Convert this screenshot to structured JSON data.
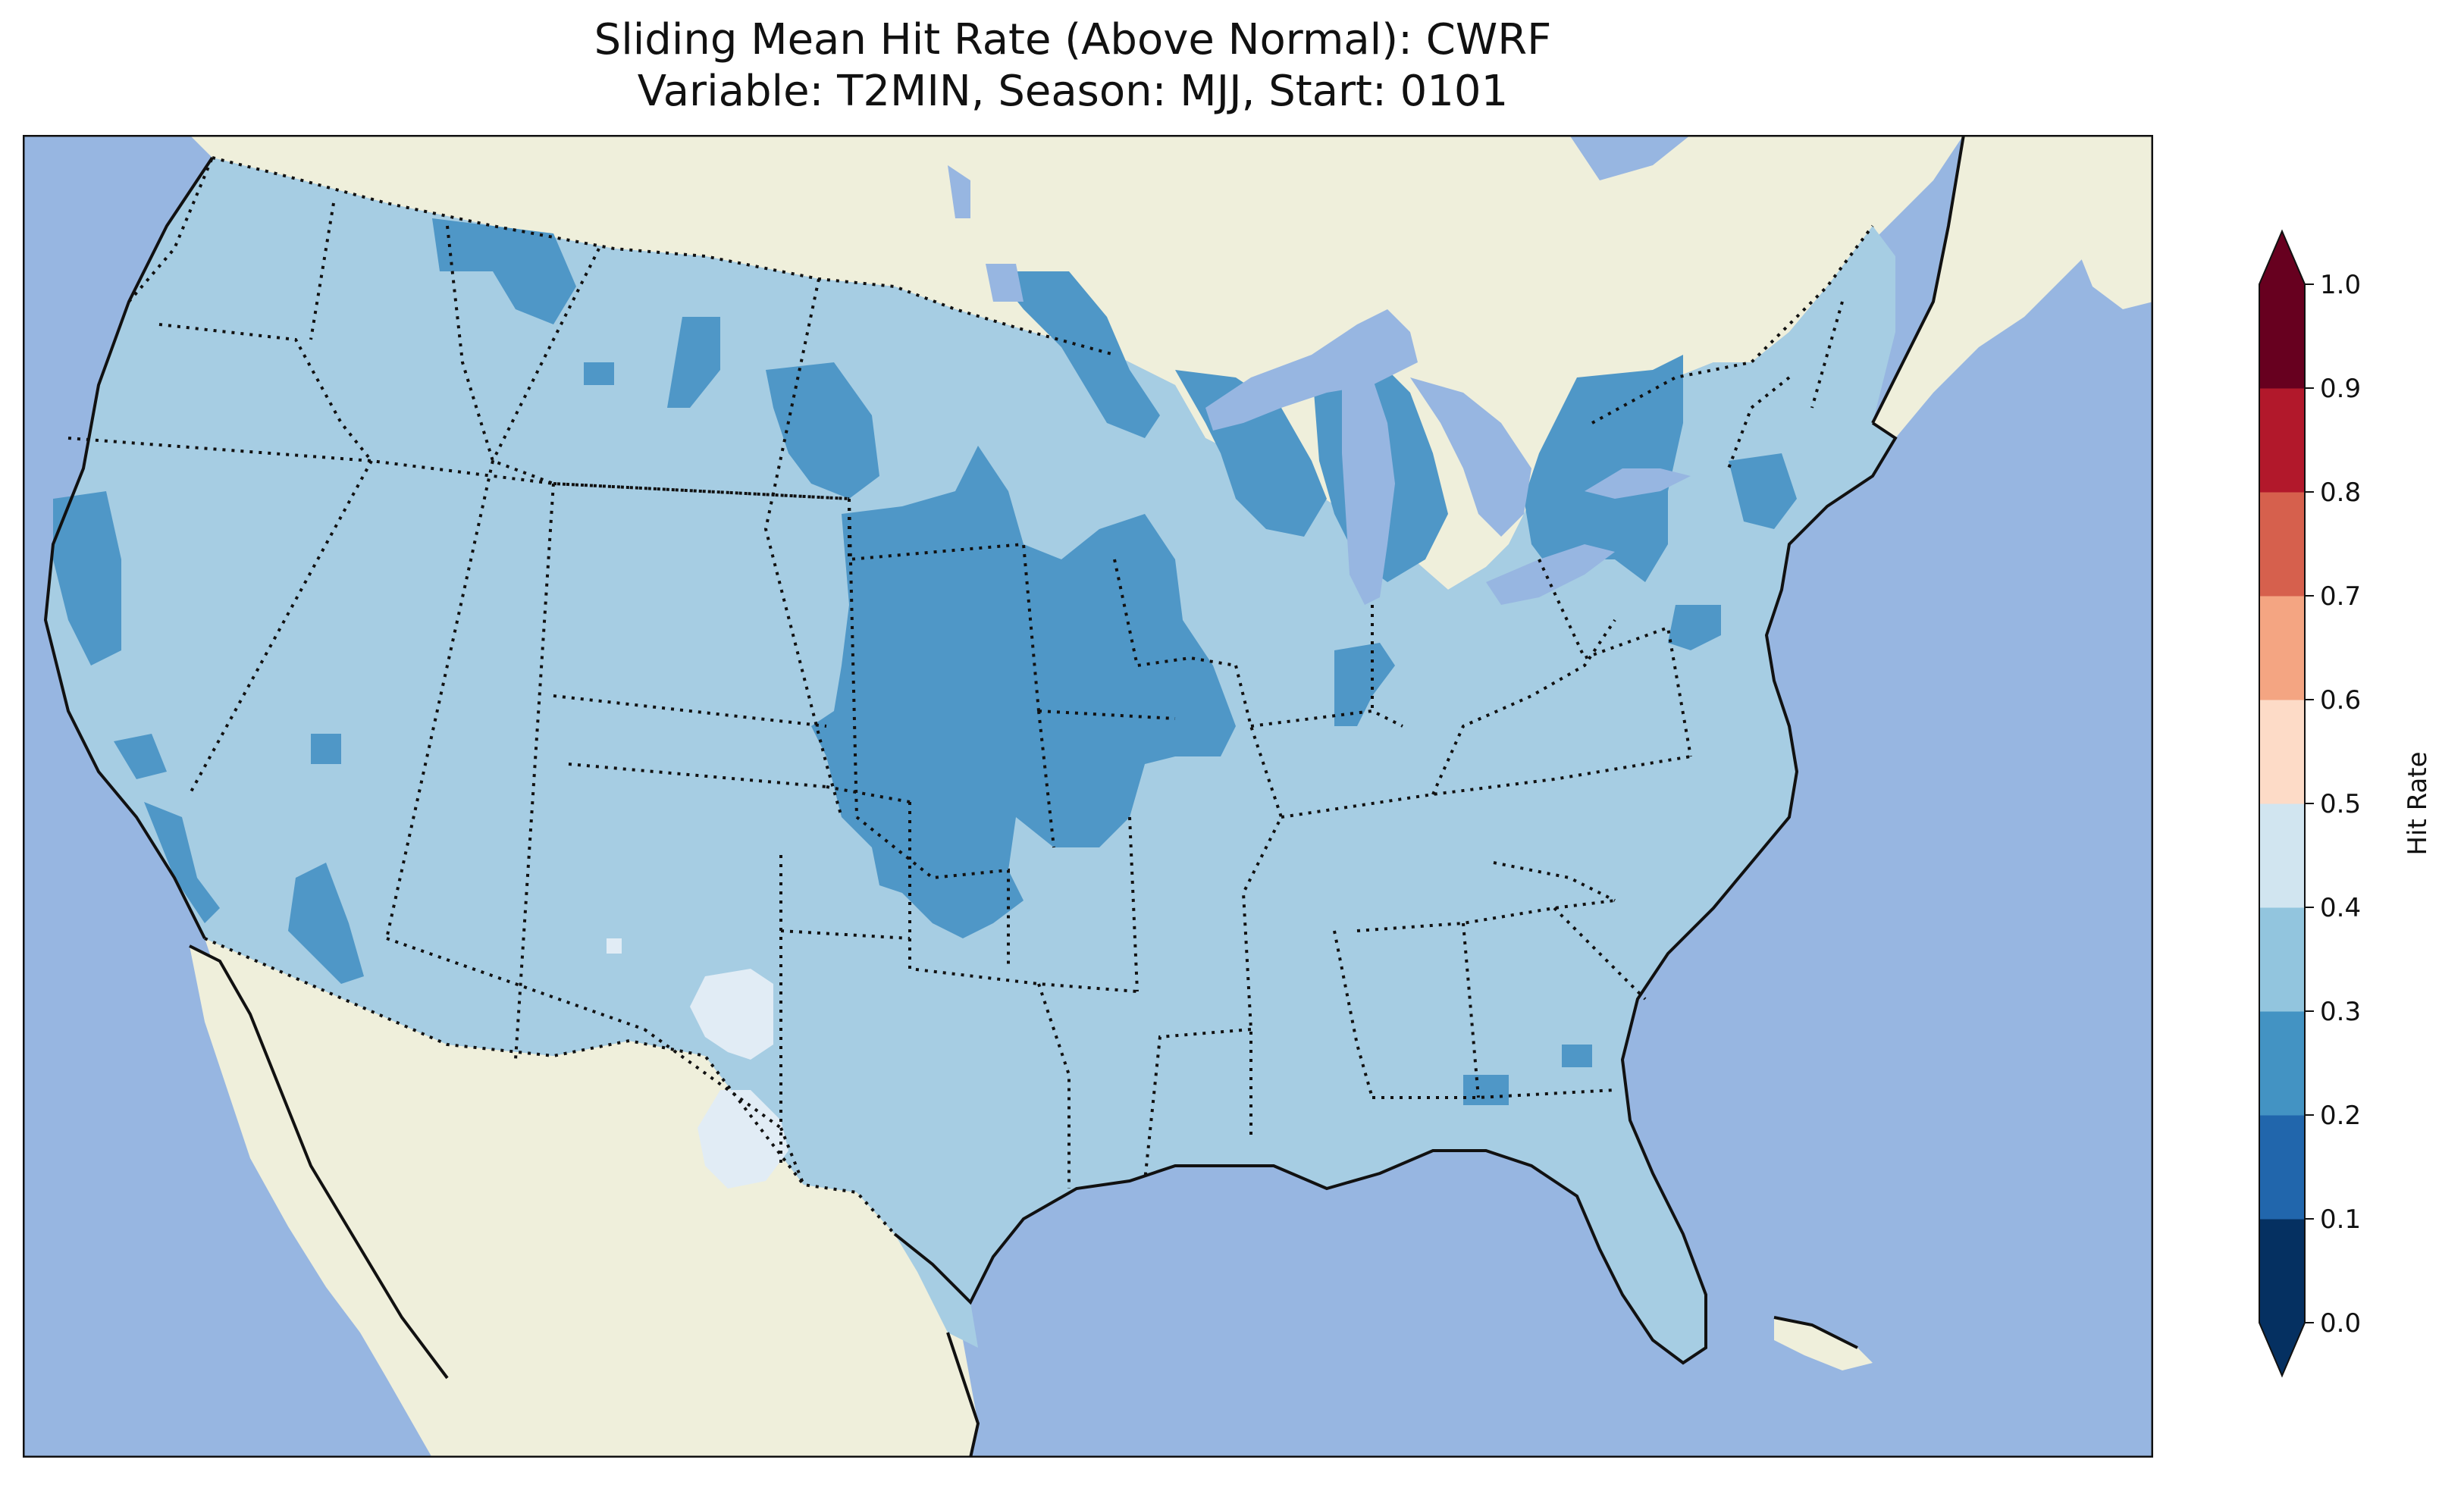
{
  "title_line1": "Sliding Mean Hit Rate (Above Normal): CWRF",
  "title_line2": "Variable: T2MIN, Season: MJJ, Start: 0101",
  "colors": {
    "ocean": "#97b6e1",
    "land": "#efefdb",
    "lakes": "#97b6e1"
  },
  "colorbar": {
    "label": "Hit Rate",
    "ticks": [
      "0.0",
      "0.1",
      "0.2",
      "0.3",
      "0.4",
      "0.5",
      "0.6",
      "0.7",
      "0.8",
      "0.9",
      "1.0"
    ],
    "levels": [
      {
        "from": 0.0,
        "to": 0.1,
        "color": "#053061"
      },
      {
        "from": 0.1,
        "to": 0.2,
        "color": "#2166ac"
      },
      {
        "from": 0.2,
        "to": 0.3,
        "color": "#4393c3"
      },
      {
        "from": 0.3,
        "to": 0.4,
        "color": "#92c5de"
      },
      {
        "from": 0.4,
        "to": 0.5,
        "color": "#d1e5f0"
      },
      {
        "from": 0.5,
        "to": 0.6,
        "color": "#fddbc7"
      },
      {
        "from": 0.6,
        "to": 0.7,
        "color": "#f4a582"
      },
      {
        "from": 0.7,
        "to": 0.8,
        "color": "#d6604d"
      },
      {
        "from": 0.8,
        "to": 0.9,
        "color": "#b2182b"
      },
      {
        "from": 0.9,
        "to": 1.0,
        "color": "#67001f"
      }
    ],
    "under_color": "#053061",
    "over_color": "#67001f"
  },
  "map_fill": {
    "base_level": "0.3-0.4",
    "base_color": "#a6cde3",
    "low_region_level": "0.2-0.3",
    "low_region_color": "#4f97c7",
    "high_region_level": "0.4-0.5",
    "high_region_color": "#e1ecf5"
  }
}
